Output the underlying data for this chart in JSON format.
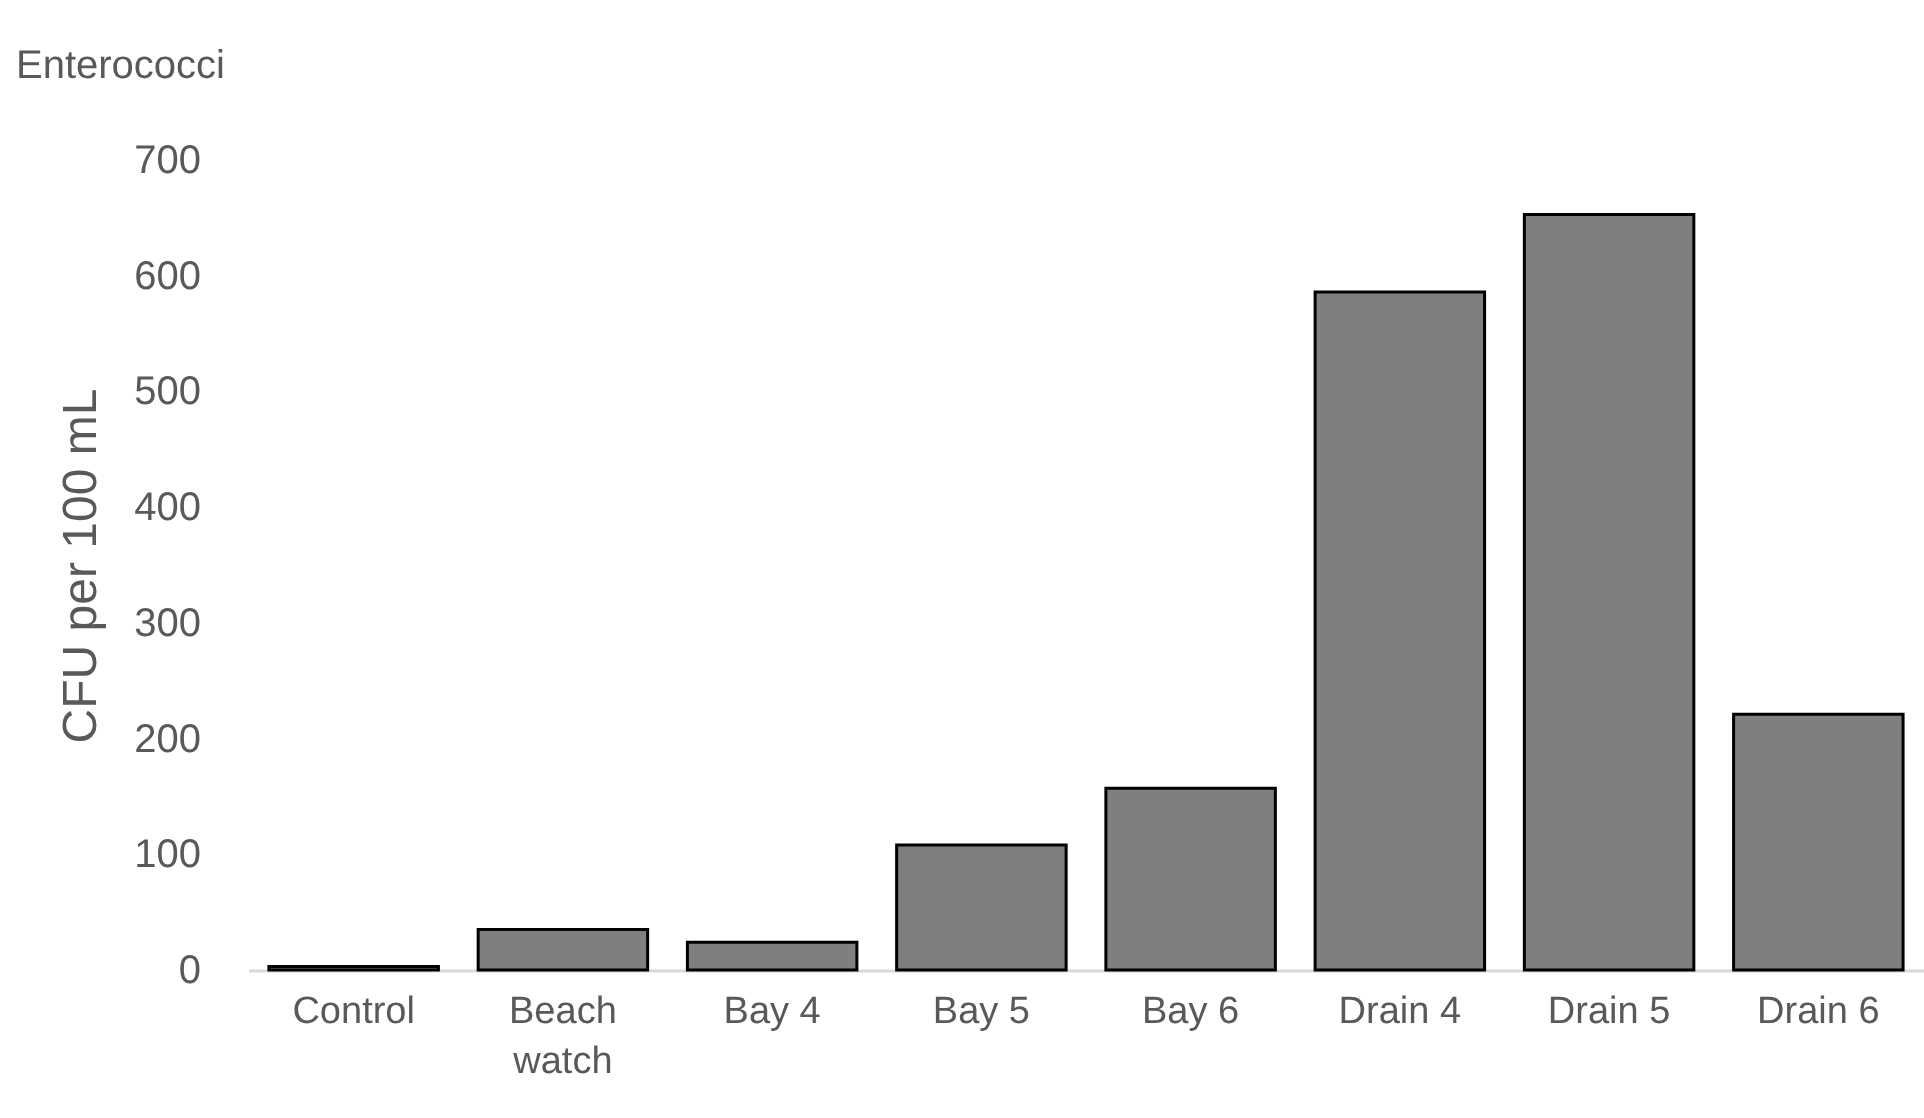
{
  "chart_data": {
    "type": "bar",
    "title": "Enterococci",
    "ylabel": "CFU per 100 mL",
    "categories": [
      "Control",
      "Beach watch",
      "Bay 4",
      "Bay 5",
      "Bay 6",
      "Drain 4",
      "Drain 5",
      "Drain 6"
    ],
    "values": [
      3,
      35,
      24,
      108,
      157,
      586,
      653,
      221
    ],
    "color": "#7f7f7f",
    "ylim": [
      0,
      700
    ],
    "yticks": [
      0,
      100,
      200,
      300,
      400,
      500,
      600,
      700
    ]
  }
}
